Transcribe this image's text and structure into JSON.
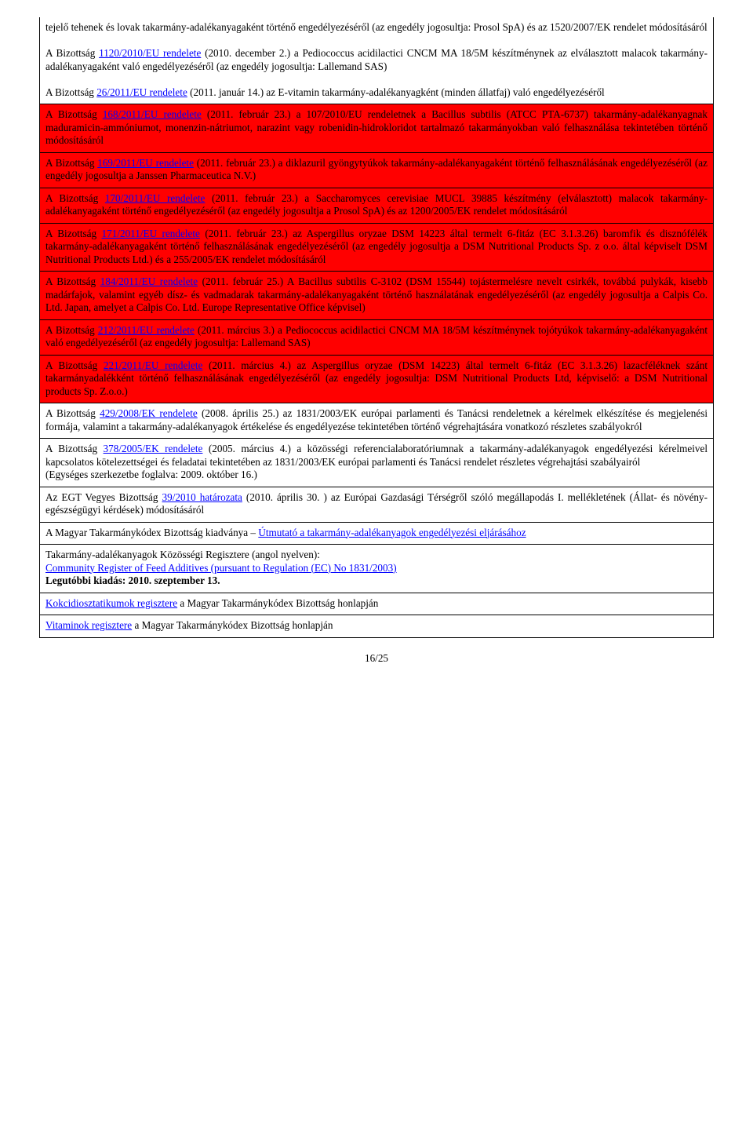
{
  "colors": {
    "highlight": "#ff0000",
    "link": "#0000ff",
    "text": "#000000",
    "bg": "#ffffff",
    "border": "#000000"
  },
  "fontsize_pt": 10,
  "page_number": "16/25",
  "rows": [
    {
      "hl": false,
      "first": true,
      "pre": "tejelő tehenek és lovak takarmány-adalékanyagaként történő engedélyezéséről (az engedély jogosultja: Prosol SpA) és az 1520/2007/EK rendelet módosításáról\n\nA Bizottság ",
      "link": "1120/2010/EU rendelete",
      "post": " (2010. december 2.) a Pediococcus acidilactici CNCM MA 18/5M készítménynek az elválasztott malacok takarmány-adalékanyagaként való engedélyezéséről (az engedély jogosultja: Lallemand SAS)\n\nA Bizottság ",
      "link2": "26/2011/EU rendelete",
      "post2": " (2011. január 14.) az E-vitamin takarmány-adalékanyagként (minden állatfaj) való engedélyezéséről"
    },
    {
      "hl": true,
      "pre": "A Bizottság ",
      "link": "168/2011/EU rendelete",
      "post": " (2011. február 23.) a 107/2010/EU rendeletnek a Bacillus subtilis (ATCC PTA-6737) takarmány-adalékanyagnak maduramicin-ammóniumot, monenzin-nátriumot, narazint vagy robenidin-hidrokloridot tartalmazó takarmányokban való felhasználása tekintetében történő módosításáról"
    },
    {
      "hl": true,
      "pre": "A Bizottság ",
      "link": "169/2011/EU rendelete",
      "post": " (2011. február 23.) a diklazuril gyöngytyúkok takarmány-adalékanyagaként történő felhasználásának engedélyezéséről (az engedély jogosultja a Janssen Pharmaceutica N.V.)"
    },
    {
      "hl": true,
      "pre": "A Bizottság ",
      "link": "170/2011/EU rendelete",
      "post": " (2011. február 23.) a Saccharomyces cerevisiae MUCL 39885 készítmény (elválasztott) malacok takarmány-adalékanyagaként történő engedélyezéséről (az engedély jogosultja a Prosol SpA) és az 1200/2005/EK rendelet módosításáról"
    },
    {
      "hl": true,
      "pre": "A Bizottság ",
      "link": "171/2011/EU rendelete",
      "post": " (2011. február 23.) az Aspergillus oryzae DSM 14223 által termelt 6-fitáz (EC 3.1.3.26) baromfik és disznófélék takarmány-adalékanyagaként történő felhasználásának engedélyezéséről (az engedély jogosultja a DSM Nutritional Products Sp. z o.o. által képviselt DSM Nutritional Products Ltd.) és a 255/2005/EK rendelet módosításáról"
    },
    {
      "hl": true,
      "pre": "A Bizottság ",
      "link": "184/2011/EU rendelete",
      "post": " (2011. február 25.) A Bacillus subtilis C-3102 (DSM 15544) tojástermelésre nevelt csirkék, továbbá pulykák, kisebb madárfajok, valamint egyéb dísz- és vadmadarak takarmány-adalékanyagaként történő használatának engedélyezéséről (az engedély jogosultja a Calpis Co. Ltd. Japan, amelyet a Calpis Co. Ltd. Europe Representative Office képvisel)"
    },
    {
      "hl": true,
      "pre": "A Bizottság ",
      "link": "212/2011/EU rendelete",
      "post": " (2011. március 3.) a Pediococcus acidilactici CNCM MA 18/5M készítménynek tojótyúkok takarmány-adalékanyagaként való engedélyezéséről (az engedély jogosultja: Lallemand SAS)"
    },
    {
      "hl": true,
      "pre": "A Bizottság ",
      "link": "221/2011/EU rendelete",
      "post": " (2011. március 4.) az Aspergillus oryzae (DSM 14223) által termelt 6-fitáz (EC 3.1.3.26) lazacféléknek szánt takarmányadalékként történő felhasználásának engedélyezéséről (az engedély jogosultja: DSM Nutritional Products Ltd, képviselő: a DSM Nutritional products Sp. Z.o.o.)"
    },
    {
      "hl": false,
      "pre": "A Bizottság ",
      "link": "429/2008/EK rendelete",
      "post": " (2008. április 25.) az 1831/2003/EK európai parlamenti és Tanácsi rendeletnek a kérelmek elkészítése és megjelenési formája, valamint a takarmány-adalékanyagok értékelése és engedélyezése tekintetében történő végrehajtására vonatkozó részletes szabályokról"
    },
    {
      "hl": false,
      "pre": "A Bizottság ",
      "link": "378/2005/EK rendelete",
      "post": " (2005. március 4.) a közösségi referencialaboratóriumnak a takarmány-adalékanyagok engedélyezési kérelmeivel kapcsolatos kötelezettségei és feladatai tekintetében az 1831/2003/EK európai parlamenti és Tanácsi rendelet részletes végrehajtási szabályairól\n(Egységes szerkezetbe foglalva: 2009. október 16.)"
    },
    {
      "hl": false,
      "pre": "Az EGT Vegyes Bizottság ",
      "link": "39/2010 határozata",
      "post": " (2010. április 30. ) az Európai Gazdasági Térségről szóló megállapodás I. mellékletének (Állat- és növény-egészségügyi kérdések) módosításáról"
    },
    {
      "hl": false,
      "pre": "A Magyar Takarmánykódex Bizottság kiadványa – ",
      "link": "Útmutató a takarmány-adalékanyagok engedélyezési eljárásához",
      "post": ""
    },
    {
      "hl": false,
      "pre": "Takarmány-adalékanyagok Közösségi Regisztere (angol nyelven):\n",
      "link": "Community Register of Feed Additives (pursuant to Regulation (EC) No 1831/2003)",
      "post": "",
      "bold_tail": "\nLegutóbbi kiadás: 2010. szeptember 13."
    },
    {
      "hl": false,
      "pre": "",
      "link": "Kokcidiosztatikumok regisztere",
      "post": " a Magyar Takarmánykódex Bizottság honlapján"
    },
    {
      "hl": false,
      "pre": "",
      "link": "Vitaminok regisztere",
      "post": " a Magyar Takarmánykódex Bizottság honlapján"
    }
  ]
}
